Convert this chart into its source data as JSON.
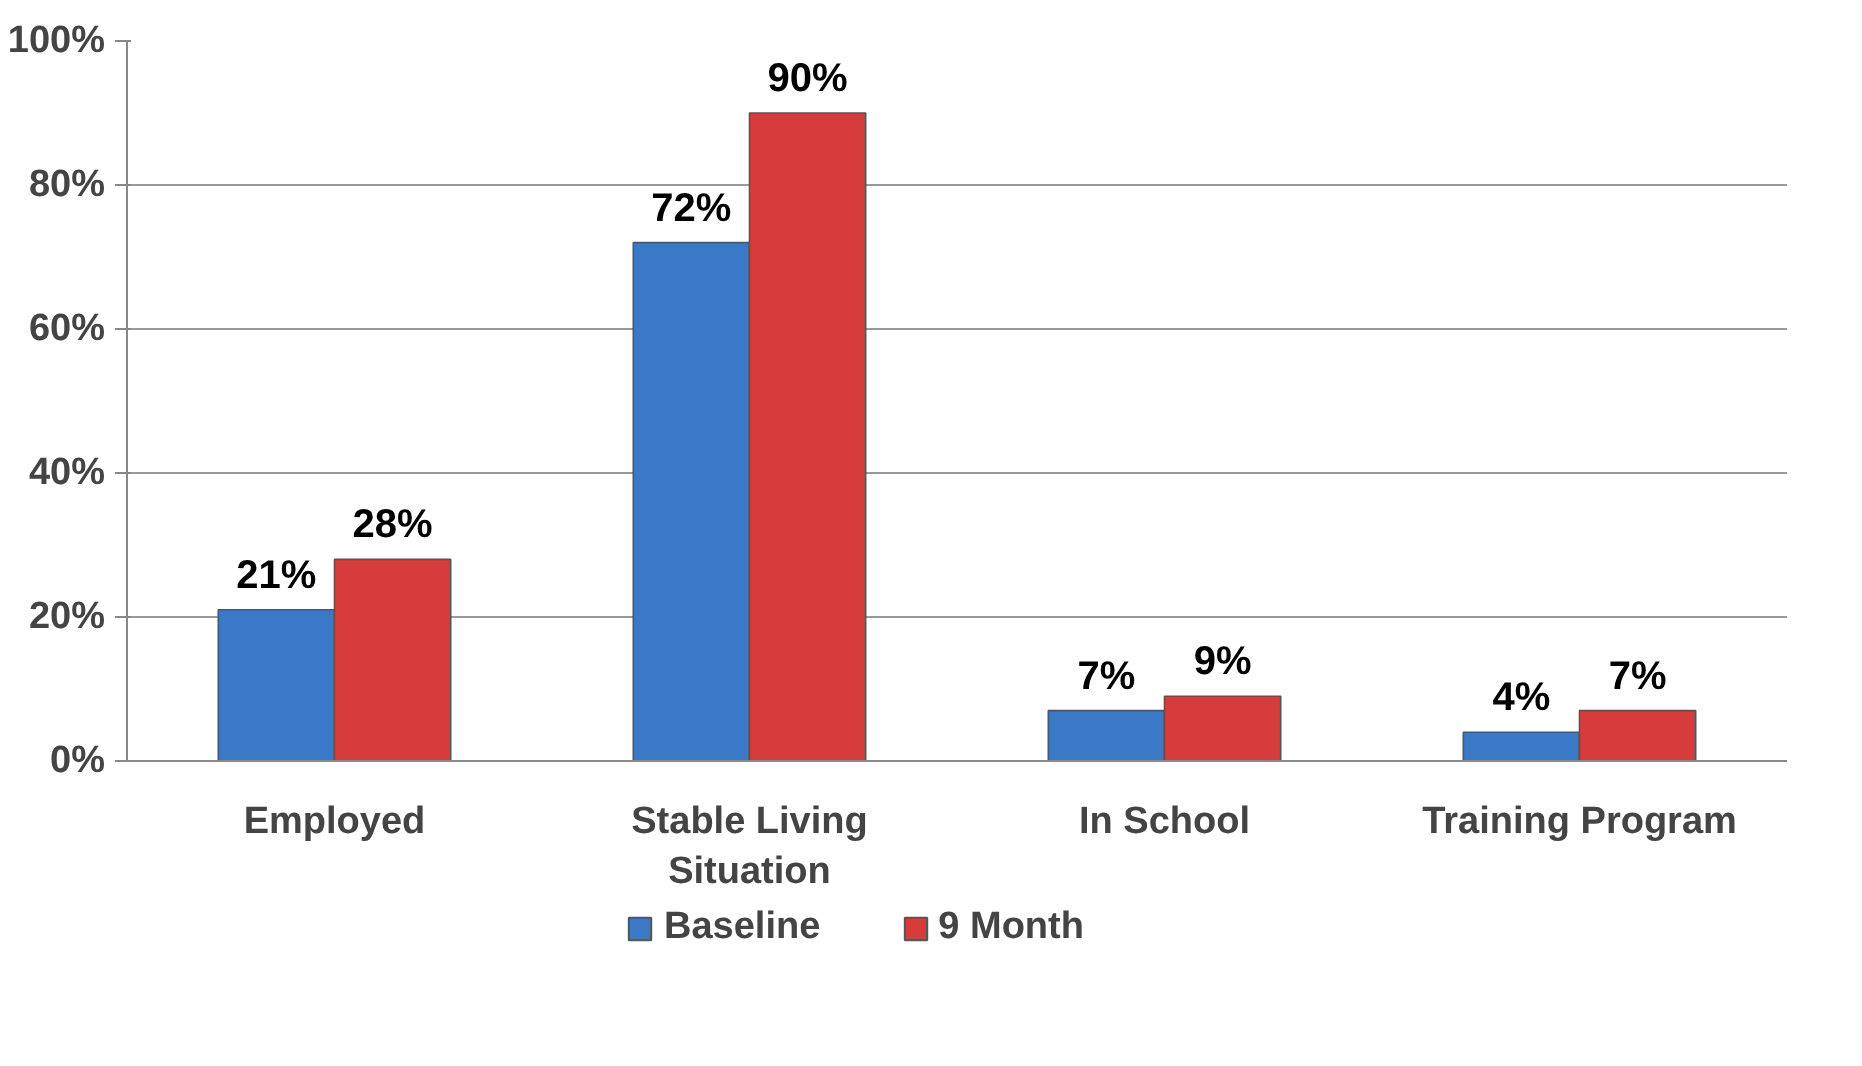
{
  "chart_data": {
    "type": "bar",
    "categories": [
      "Employed",
      "Stable Living Situation",
      "In School",
      "Training Program"
    ],
    "series": [
      {
        "name": "Baseline",
        "color": "#3a78c8",
        "values": [
          21,
          72,
          7,
          4
        ],
        "value_labels": [
          "21%",
          "72%",
          "7%",
          "4%"
        ]
      },
      {
        "name": "9 Month",
        "color": "#d63c3c",
        "values": [
          28,
          90,
          9,
          7
        ],
        "value_labels": [
          "28%",
          "90%",
          "9%",
          "7%"
        ]
      }
    ],
    "ylim": [
      0,
      100
    ],
    "yticks": [
      {
        "value": 0,
        "label": "0%"
      },
      {
        "value": 20,
        "label": "20%"
      },
      {
        "value": 40,
        "label": "40%"
      },
      {
        "value": 60,
        "label": "60%"
      },
      {
        "value": 80,
        "label": "80%"
      },
      {
        "value": 100,
        "label": "100%"
      }
    ],
    "grid": "y",
    "legend": "bottom"
  }
}
